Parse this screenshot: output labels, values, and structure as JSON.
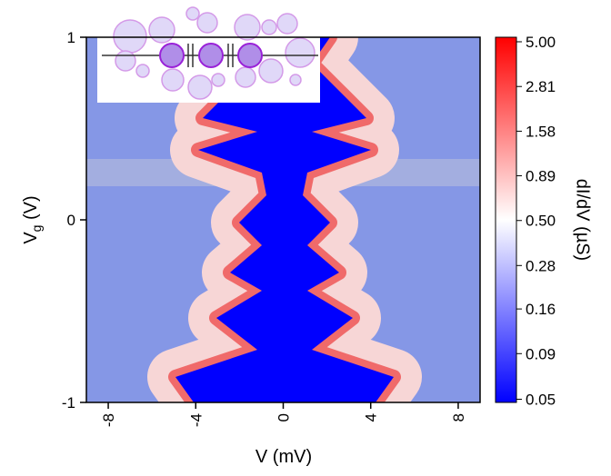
{
  "chart_data": {
    "type": "heatmap",
    "xlabel": "V (mV)",
    "ylabel_parts": [
      "V",
      "g",
      " (V)"
    ],
    "xlim": [
      -9,
      9
    ],
    "xticks": [
      -8,
      -4,
      0,
      4,
      8
    ],
    "ylim": [
      -1,
      1
    ],
    "yticks": [
      -1,
      0,
      1
    ],
    "colorbar": {
      "label": "dI/dV (µS)",
      "scale": "log",
      "lim": [
        0.048,
        5.3
      ],
      "colors": [
        "#0000ff",
        "#ffffff",
        "#ff0000"
      ],
      "ticks": [
        {
          "value": 5,
          "label": "5.00"
        },
        2.81,
        1.58,
        0.89,
        {
          "value": 0.5,
          "label": "0.50"
        },
        0.28,
        0.16,
        0.09,
        0.05
      ]
    }
  }
}
